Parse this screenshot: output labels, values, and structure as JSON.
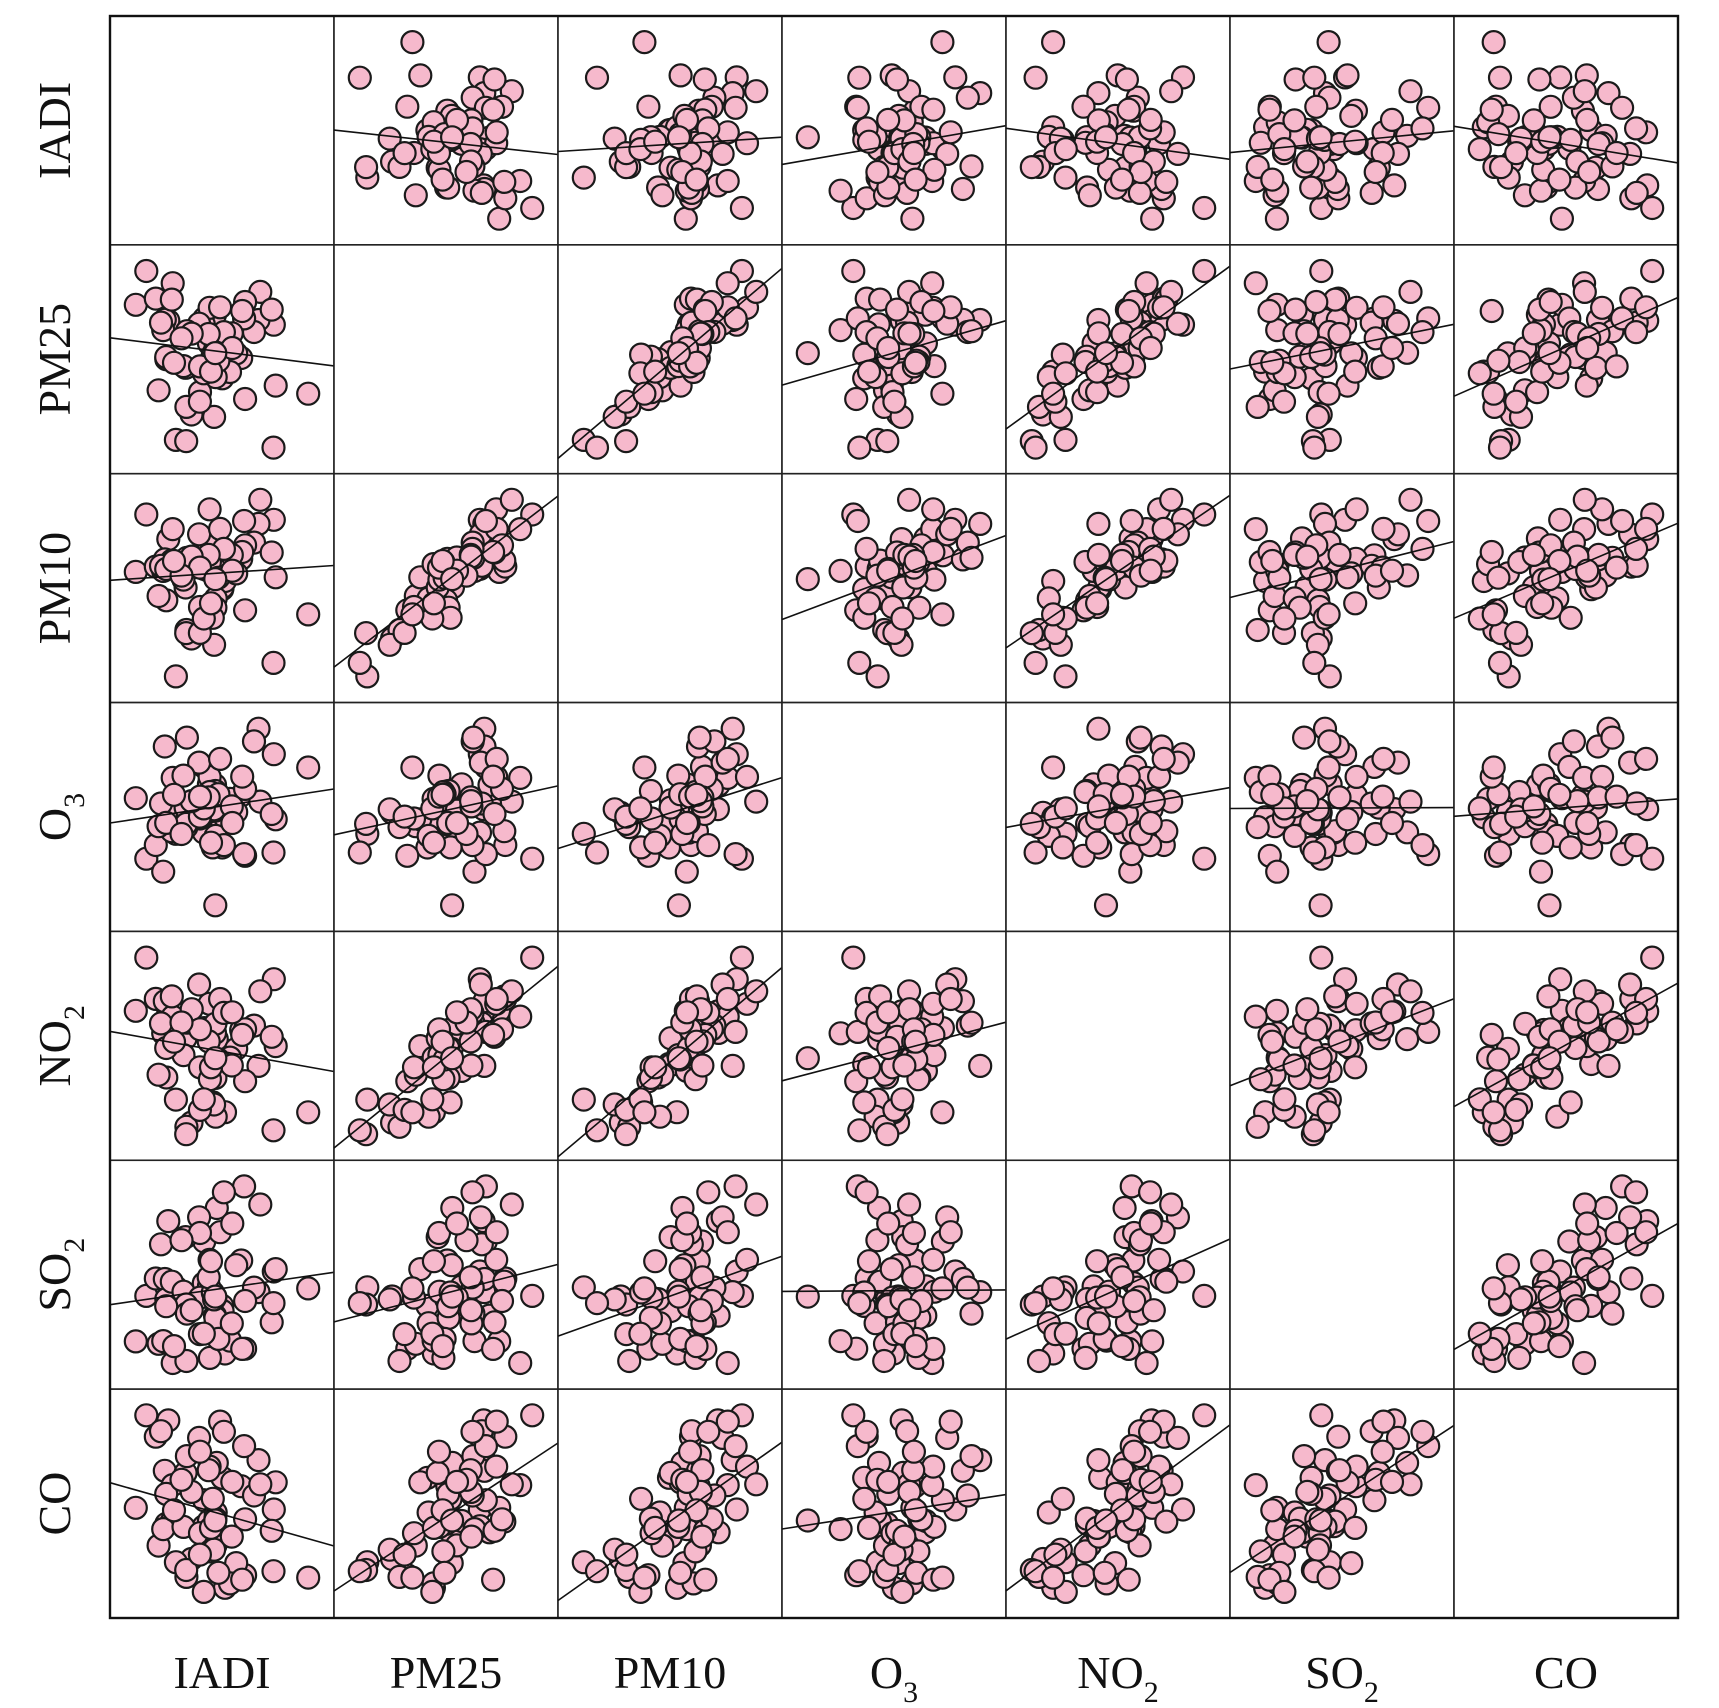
{
  "chart_data": {
    "type": "scatter",
    "subtype": "scatterplot-matrix",
    "title": "",
    "variables": [
      {
        "key": "IADI",
        "label": "IADI",
        "sub": ""
      },
      {
        "key": "PM25",
        "label": "PM25",
        "sub": ""
      },
      {
        "key": "PM10",
        "label": "PM10",
        "sub": ""
      },
      {
        "key": "O3",
        "label": "O",
        "sub": "3"
      },
      {
        "key": "NO2",
        "label": "NO",
        "sub": "2"
      },
      {
        "key": "SO2",
        "label": "SO",
        "sub": "2"
      },
      {
        "key": "CO",
        "label": "CO",
        "sub": ""
      }
    ],
    "marker": {
      "shape": "circle",
      "fill": "#f6b9cc",
      "stroke": "#1a1a1a"
    },
    "line_color": "#111111",
    "grid": false,
    "legend": "none",
    "diagonal": "empty",
    "axis_ticks": false,
    "n_points": 64,
    "seed": 7,
    "correlations": {
      "IADI|PM25": -0.12,
      "IADI|PM10": 0.05,
      "IADI|O3": 0.04,
      "IADI|NO2": -0.2,
      "IADI|SO2": 0.05,
      "IADI|CO": -0.2,
      "PM25|PM10": 0.9,
      "PM25|O3": 0.12,
      "PM25|NO2": 0.8,
      "PM25|SO2": 0.4,
      "PM25|CO": 0.7,
      "PM10|O3": 0.2,
      "PM10|NO2": 0.82,
      "PM10|SO2": 0.45,
      "PM10|CO": 0.68,
      "O3|NO2": 0.03,
      "O3|SO2": -0.05,
      "O3|CO": 0.0,
      "NO2|SO2": 0.45,
      "NO2|CO": 0.75,
      "SO2|CO": 0.6
    },
    "outliers": [
      {
        "var": "O3",
        "value": -3.2,
        "note": "low O3 value visible in every O3 panel"
      }
    ]
  }
}
